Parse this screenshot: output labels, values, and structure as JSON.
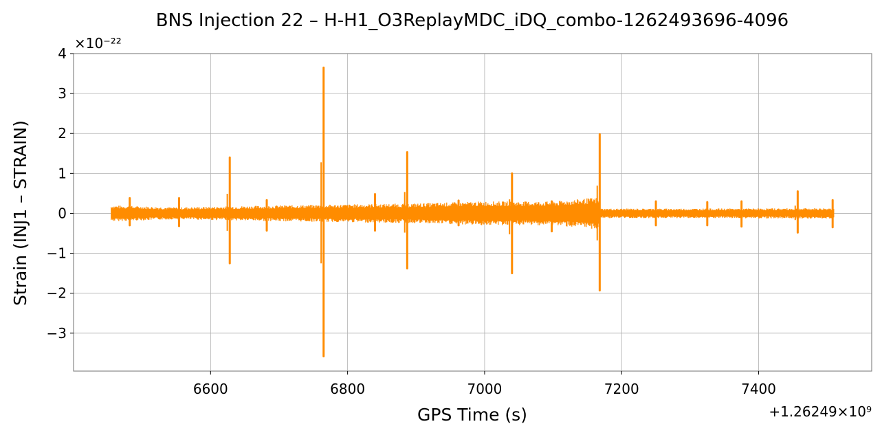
{
  "chart_data": {
    "type": "line",
    "title": "BNS Injection 22 – H-H1_O3ReplayMDC_iDQ_combo-1262493696-4096",
    "xlabel": "GPS Time (s)",
    "ylabel": "Strain (INJ1 – STRAIN)",
    "xlim": [
      6400,
      7565
    ],
    "ylim": [
      -3.95,
      4.0
    ],
    "x_offset_text": "+1.26249×10⁹",
    "y_scale_text": "×10⁻²²",
    "x_ticks": [
      6600,
      6800,
      7000,
      7200,
      7400
    ],
    "x_tick_labels": [
      "6600",
      "6800",
      "7000",
      "7200",
      "7400"
    ],
    "y_ticks": [
      -3,
      -2,
      -1,
      0,
      1,
      2,
      3,
      4
    ],
    "y_tick_labels": [
      "−3",
      "−2",
      "−1",
      "0",
      "1",
      "2",
      "3",
      "4"
    ],
    "grid": true,
    "series": [
      {
        "color": "#ff8c00",
        "x_range": [
          6455,
          7510
        ],
        "baseline_envelope": [
          [
            6455,
            0.2
          ],
          [
            6550,
            0.15
          ],
          [
            6700,
            0.2
          ],
          [
            6900,
            0.25
          ],
          [
            7000,
            0.3
          ],
          [
            7100,
            0.3
          ],
          [
            7165,
            0.4
          ],
          [
            7170,
            0.12
          ],
          [
            7300,
            0.12
          ],
          [
            7510,
            0.13
          ]
        ],
        "spikes": [
          {
            "x": 6482,
            "max": 0.38,
            "min": -0.3
          },
          {
            "x": 6554,
            "max": 0.38,
            "min": -0.32
          },
          {
            "x": 6628,
            "max": 1.4,
            "min": -1.25
          },
          {
            "x": 6682,
            "max": 0.33,
            "min": -0.43
          },
          {
            "x": 6765,
            "max": 3.65,
            "min": -3.58
          },
          {
            "x": 6840,
            "max": 0.48,
            "min": -0.43
          },
          {
            "x": 6887,
            "max": 1.53,
            "min": -1.38
          },
          {
            "x": 6962,
            "max": 0.32,
            "min": -0.3
          },
          {
            "x": 7040,
            "max": 1.0,
            "min": -1.5
          },
          {
            "x": 7098,
            "max": 0.3,
            "min": -0.45
          },
          {
            "x": 7168,
            "max": 1.98,
            "min": -1.93
          },
          {
            "x": 7250,
            "max": 0.3,
            "min": -0.3
          },
          {
            "x": 7325,
            "max": 0.28,
            "min": -0.3
          },
          {
            "x": 7375,
            "max": 0.3,
            "min": -0.33
          },
          {
            "x": 7457,
            "max": 0.55,
            "min": -0.48
          },
          {
            "x": 7508,
            "max": 0.33,
            "min": -0.35
          }
        ]
      }
    ]
  }
}
